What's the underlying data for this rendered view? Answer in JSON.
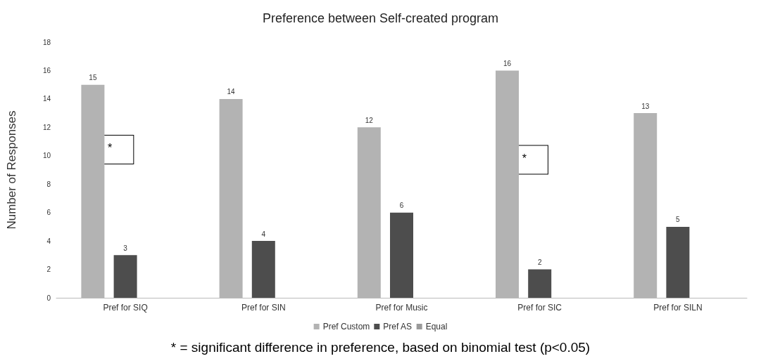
{
  "chart_data": {
    "type": "bar",
    "title": "Preference between Self-created program",
    "ylabel": "Number of Responses",
    "categories": [
      "Pref for SIQ",
      "Pref for SIN",
      "Pref for Music",
      "Pref for SIC",
      "Pref for SILN"
    ],
    "series": [
      {
        "name": "Pref Custom",
        "color": "#b3b3b3",
        "values": [
          15,
          14,
          12,
          16,
          13
        ]
      },
      {
        "name": "Pref AS",
        "color": "#4d4d4d",
        "values": [
          3,
          4,
          6,
          2,
          5
        ]
      },
      {
        "name": "Equal",
        "color": "#9a9a9a",
        "values": [
          null,
          null,
          null,
          null,
          null
        ]
      }
    ],
    "ylim": [
      0,
      18
    ],
    "yticks": [
      0,
      2,
      4,
      6,
      8,
      10,
      12,
      14,
      16,
      18
    ],
    "grid": false,
    "legend": "bottom",
    "data_labels": true,
    "annotations": [
      "*",
      "*",
      "* = significant difference in preference, based on binomial test (p<0.05)"
    ]
  }
}
